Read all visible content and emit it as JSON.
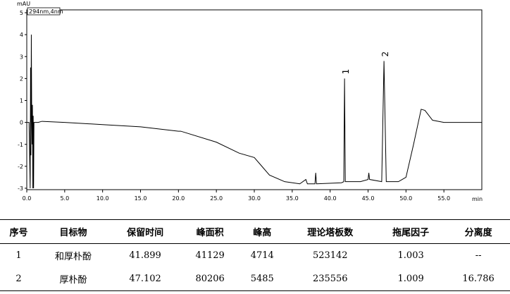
{
  "chart_data": {
    "type": "line",
    "y_unit": "mAU",
    "x_unit": "min",
    "detector": "294nm,4nm",
    "x": [
      0,
      0.3,
      0.45,
      0.5,
      0.55,
      0.6,
      0.65,
      0.7,
      0.75,
      0.8,
      0.85,
      0.9,
      0.95,
      1.0,
      1.5,
      2,
      5,
      10,
      15,
      20,
      20.3,
      25,
      28,
      30,
      31,
      32,
      34,
      36,
      36.8,
      37,
      38,
      38.1,
      38.2,
      41.5,
      41.8,
      41.9,
      42.0,
      44,
      45,
      45.1,
      45.2,
      46.8,
      47.1,
      47.4,
      49,
      50,
      51,
      52,
      52.5,
      53.5,
      55,
      60
    ],
    "series": [
      {
        "name": "294nm,4nm",
        "color": "#000000",
        "values": [
          0,
          0,
          -3,
          2.5,
          -1.5,
          4.0,
          0.5,
          -1,
          0.8,
          -3,
          0.3,
          -3,
          0,
          0,
          0,
          0.05,
          0,
          -0.1,
          -0.2,
          -0.4,
          -0.4,
          -0.9,
          -1.4,
          -1.6,
          -2.0,
          -2.4,
          -2.7,
          -2.8,
          -2.6,
          -2.8,
          -2.8,
          -2.3,
          -2.8,
          -2.75,
          -2.7,
          2.0,
          -2.7,
          -2.7,
          -2.6,
          -2.3,
          -2.6,
          -2.7,
          2.8,
          -2.7,
          -2.7,
          -2.5,
          -1,
          0.6,
          0.55,
          0.1,
          0,
          0
        ]
      }
    ],
    "annotations": [
      {
        "text": "1",
        "x": 41.9,
        "y": 2.0
      },
      {
        "text": "2",
        "x": 47.1,
        "y": 2.8
      }
    ],
    "xlim": [
      0,
      60
    ],
    "ylim": [
      -3,
      5
    ],
    "xticks": [
      {
        "value": 0,
        "label": "0.0"
      },
      {
        "value": 5,
        "label": "5.0"
      },
      {
        "value": 10,
        "label": "10.0"
      },
      {
        "value": 15,
        "label": "15.0"
      },
      {
        "value": 20,
        "label": "20.0"
      },
      {
        "value": 25,
        "label": "25.0"
      },
      {
        "value": 30,
        "label": "30.0"
      },
      {
        "value": 35,
        "label": "35.0"
      },
      {
        "value": 40,
        "label": "40.0"
      },
      {
        "value": 45,
        "label": "45.0"
      },
      {
        "value": 50,
        "label": "50.0"
      },
      {
        "value": 55,
        "label": "55.0"
      }
    ],
    "yticks": [
      5,
      4,
      3,
      2,
      1,
      0,
      -1,
      -2,
      -3
    ]
  },
  "table": {
    "header": [
      "序号",
      "目标物",
      "保留时间",
      "峰面积",
      "峰高",
      "理论塔板数",
      "拖尾因子",
      "分离度"
    ],
    "rows": [
      [
        "1",
        "和厚朴酚",
        "41.899",
        "41129",
        "4714",
        "523142",
        "1.003",
        "--"
      ],
      [
        "2",
        "厚朴酚",
        "47.102",
        "80206",
        "5485",
        "235556",
        "1.009",
        "16.786"
      ]
    ]
  }
}
